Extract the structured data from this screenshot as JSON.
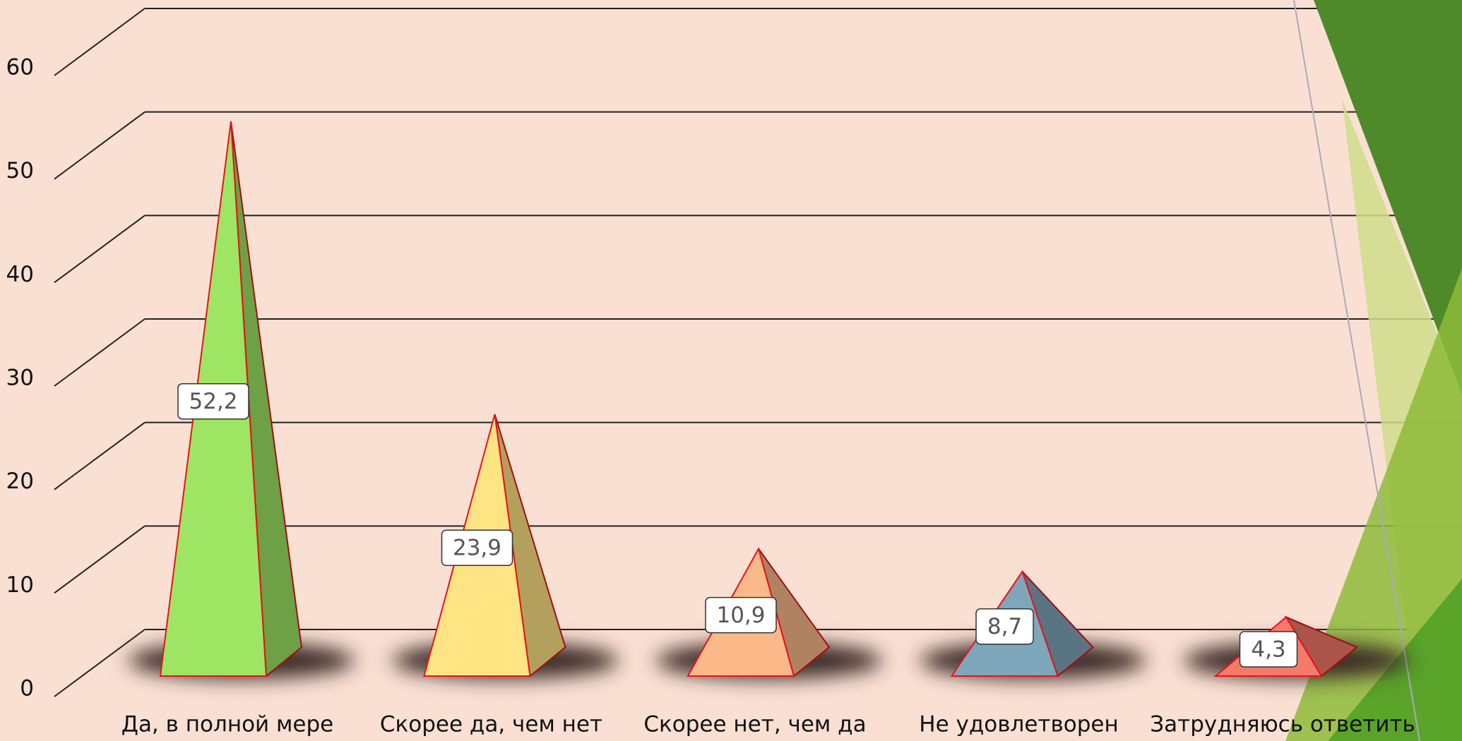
{
  "chart_data": {
    "type": "pyramid",
    "categories": [
      "Да, в полной мере",
      "Скорее да, чем нет",
      "Скорее нет, чем да",
      "Не удовлетворен",
      "Затрудняюсь ответить"
    ],
    "values": [
      52.2,
      23.9,
      10.9,
      8.7,
      4.3
    ],
    "value_labels": [
      "52,2",
      "23,9",
      "10,9",
      "8,7",
      "4,3"
    ],
    "colors": [
      "#9de563",
      "#ffe484",
      "#fbb98a",
      "#7fa7bb",
      "#f47a6a"
    ],
    "ylim": [
      0,
      60
    ],
    "yticks": [
      0,
      10,
      20,
      30,
      40,
      50,
      60
    ],
    "grid": true
  }
}
